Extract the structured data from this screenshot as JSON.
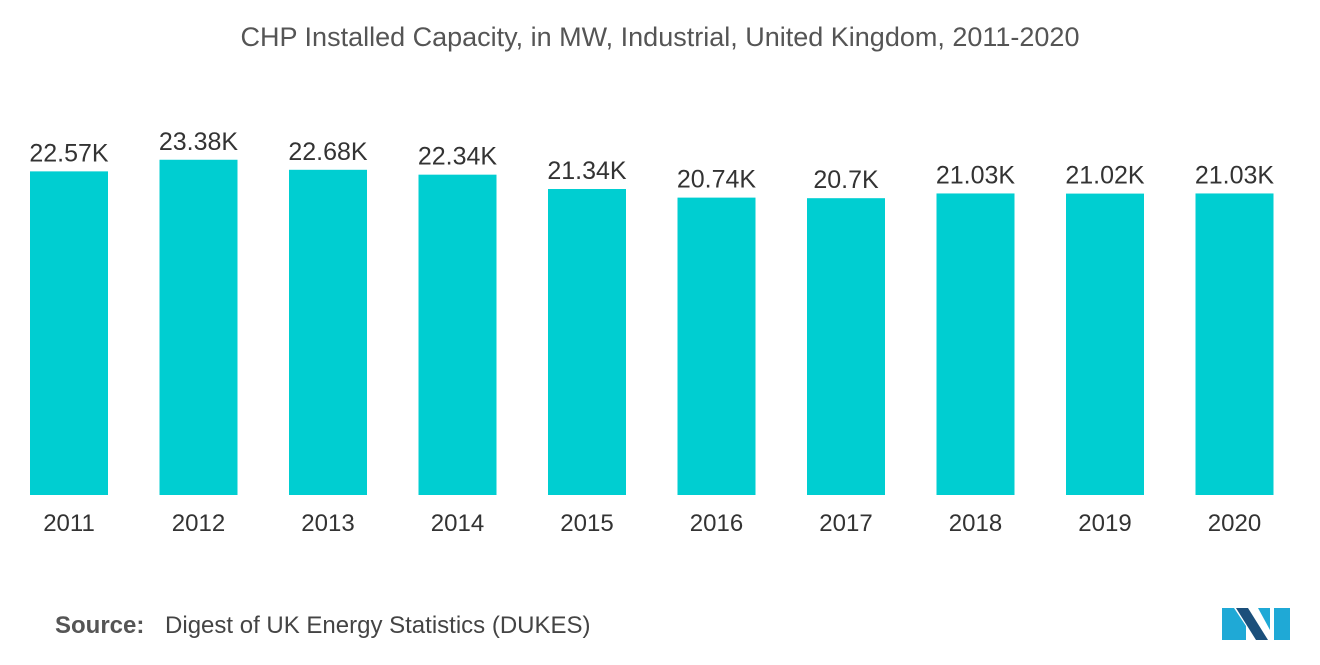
{
  "chart_data": {
    "type": "bar",
    "title": "CHP Installed Capacity, in MW, Industrial, United Kingdom, 2011-2020",
    "categories": [
      "2011",
      "2012",
      "2013",
      "2014",
      "2015",
      "2016",
      "2017",
      "2018",
      "2019",
      "2020"
    ],
    "values": [
      22570,
      23380,
      22680,
      22340,
      21340,
      20740,
      20700,
      21030,
      21020,
      21030
    ],
    "value_labels": [
      "22.57K",
      "23.38K",
      "22.68K",
      "22.34K",
      "21.34K",
      "20.74K",
      "20.7K",
      "21.03K",
      "21.02K",
      "21.03K"
    ],
    "xlabel": "",
    "ylabel": "",
    "ylim": [
      0,
      24200
    ],
    "grid": false,
    "legend": "none",
    "bar_color": "#00CED1"
  },
  "source": {
    "label": "Source:",
    "text": "Digest of UK Energy Statistics (DUKES)"
  },
  "logo": {
    "icon": "mordor-intelligence-logo-icon",
    "colors": [
      "#1FA9D6",
      "#1B4F7B"
    ]
  }
}
